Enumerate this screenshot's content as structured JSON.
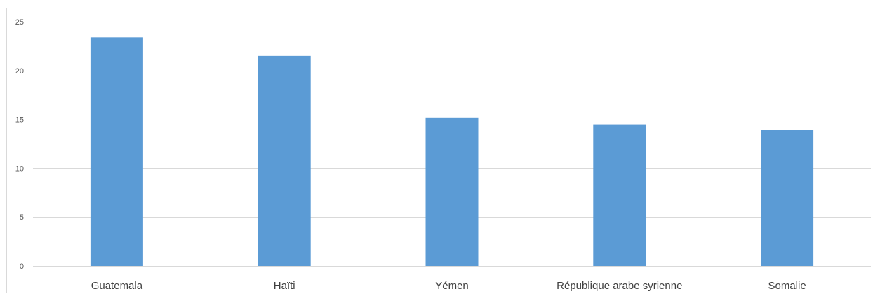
{
  "chart_data": {
    "type": "bar",
    "title": "",
    "xlabel": "",
    "ylabel": "",
    "categories": [
      "Guatemala",
      "Haïti",
      "Yémen",
      "République arabe syrienne",
      "Somalie"
    ],
    "values": [
      23.4,
      21.5,
      15.2,
      14.5,
      13.9
    ],
    "ylim": [
      0,
      25
    ],
    "yticks": [
      0,
      5,
      10,
      15,
      20,
      25
    ],
    "grid": true,
    "legend": "none",
    "bar_color": "#5b9bd5",
    "grid_color": "#d9d9d9"
  }
}
